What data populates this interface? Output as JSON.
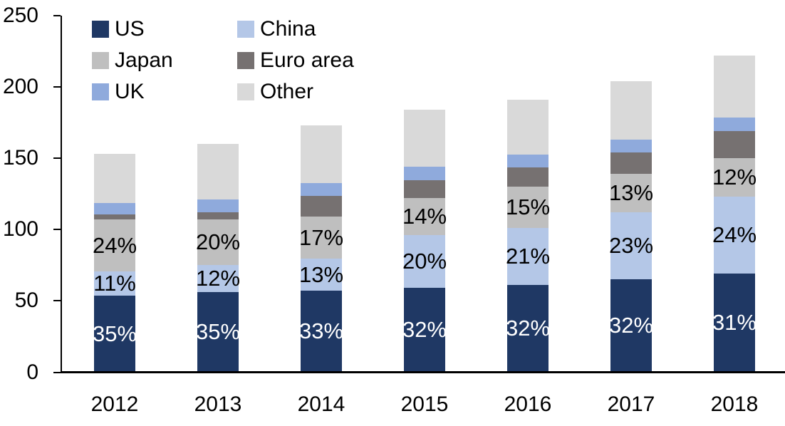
{
  "chart_data": {
    "type": "bar",
    "stacked": true,
    "title": "",
    "xlabel": "",
    "ylabel": "",
    "grid": false,
    "legend_position": "top-left",
    "legend_columns": 2,
    "categories": [
      "2012",
      "2013",
      "2014",
      "2015",
      "2016",
      "2017",
      "2018"
    ],
    "y_axis": {
      "min": 0,
      "max": 250,
      "ticks": [
        0,
        50,
        100,
        150,
        200,
        250
      ]
    },
    "totals": [
      153,
      160,
      173,
      184,
      191,
      204,
      222
    ],
    "series": [
      {
        "name": "US",
        "color": "#1F3864",
        "values": [
          53.5,
          56,
          57,
          59,
          61,
          65,
          69
        ],
        "pct_labels": [
          "35%",
          "35%",
          "33%",
          "32%",
          "32%",
          "32%",
          "31%"
        ],
        "label_color": "#FFFFFF"
      },
      {
        "name": "China",
        "color": "#B4C7E7",
        "values": [
          17,
          19,
          22.5,
          37,
          40,
          47,
          54
        ],
        "pct_labels": [
          "11%",
          "12%",
          "13%",
          "20%",
          "21%",
          "23%",
          "24%"
        ],
        "label_color": "#000000"
      },
      {
        "name": "Japan",
        "color": "#BFBFBF",
        "values": [
          36.5,
          32,
          29.5,
          26,
          29,
          27,
          27
        ],
        "pct_labels": [
          "24%",
          "20%",
          "17%",
          "14%",
          "15%",
          "13%",
          "12%"
        ],
        "label_color": "#000000"
      },
      {
        "name": "Euro area",
        "color": "#767171",
        "values": [
          3.5,
          5,
          14.5,
          12.5,
          13.5,
          15,
          19
        ],
        "pct_labels": null,
        "label_color": null
      },
      {
        "name": "UK",
        "color": "#8FAADC",
        "values": [
          8,
          9,
          9,
          9.5,
          9,
          9,
          9.5
        ],
        "pct_labels": null,
        "label_color": null
      },
      {
        "name": "Other",
        "color": "#D9D9D9",
        "values": [
          34.5,
          39,
          40.5,
          40,
          38.5,
          41,
          43.5
        ],
        "pct_labels": null,
        "label_color": null
      }
    ]
  },
  "colors": {
    "axis": "#000000",
    "text": "#000000",
    "background": "#FFFFFF"
  }
}
